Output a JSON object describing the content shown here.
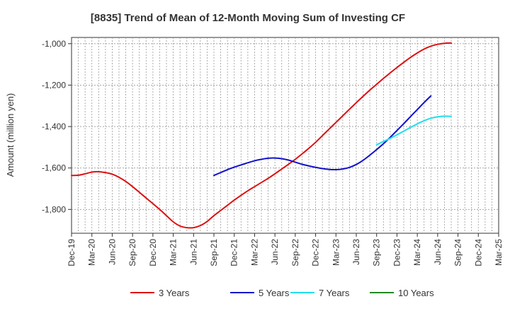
{
  "chart_data": {
    "type": "line",
    "title": "[8835]  Trend of Mean of 12-Month Moving Sum of Investing CF",
    "xlabel": "",
    "ylabel": "Amount (million yen)",
    "ylim": [
      -1915,
      -970
    ],
    "yticks": [
      -1000,
      -1200,
      -1400,
      -1600,
      -1800
    ],
    "ytick_labels": [
      "-1,000",
      "-1,200",
      "-1,400",
      "-1,600",
      "-1,800"
    ],
    "x_months": [
      "Dec-19",
      "Jan-20",
      "Feb-20",
      "Mar-20",
      "Apr-20",
      "May-20",
      "Jun-20",
      "Jul-20",
      "Aug-20",
      "Sep-20",
      "Oct-20",
      "Nov-20",
      "Dec-20",
      "Jan-21",
      "Feb-21",
      "Mar-21",
      "Apr-21",
      "May-21",
      "Jun-21",
      "Jul-21",
      "Aug-21",
      "Sep-21",
      "Oct-21",
      "Nov-21",
      "Dec-21",
      "Jan-22",
      "Feb-22",
      "Mar-22",
      "Apr-22",
      "May-22",
      "Jun-22",
      "Jul-22",
      "Aug-22",
      "Sep-22",
      "Oct-22",
      "Nov-22",
      "Dec-22",
      "Jan-23",
      "Feb-23",
      "Mar-23",
      "Apr-23",
      "May-23",
      "Jun-23",
      "Jul-23",
      "Aug-23",
      "Sep-23",
      "Oct-23",
      "Nov-23",
      "Dec-23",
      "Jan-24",
      "Feb-24",
      "Mar-24",
      "Apr-24",
      "May-24",
      "Jun-24",
      "Jul-24",
      "Aug-24",
      "Sep-24",
      "Oct-24",
      "Nov-24",
      "Dec-24",
      "Jan-25",
      "Feb-25",
      "Mar-25"
    ],
    "x_tick_labels": [
      "Dec-19",
      "Mar-20",
      "Jun-20",
      "Sep-20",
      "Dec-20",
      "Mar-21",
      "Jun-21",
      "Sep-21",
      "Dec-21",
      "Mar-22",
      "Jun-22",
      "Sep-22",
      "Dec-22",
      "Mar-23",
      "Jun-23",
      "Sep-23",
      "Dec-23",
      "Mar-24",
      "Jun-24",
      "Sep-24",
      "Dec-24",
      "Mar-25"
    ],
    "series": [
      {
        "name": "3 Years",
        "color": "#dd1111",
        "start": "Dec-19",
        "values": [
          -1636,
          -1635,
          -1628,
          -1620,
          -1618,
          -1622,
          -1630,
          -1645,
          -1665,
          -1690,
          -1717,
          -1745,
          -1772,
          -1800,
          -1830,
          -1860,
          -1880,
          -1888,
          -1888,
          -1878,
          -1858,
          -1830,
          -1805,
          -1780,
          -1755,
          -1732,
          -1710,
          -1690,
          -1670,
          -1650,
          -1628,
          -1605,
          -1582,
          -1558,
          -1532,
          -1505,
          -1476,
          -1444,
          -1412,
          -1380,
          -1348,
          -1316,
          -1285,
          -1254,
          -1224,
          -1196,
          -1168,
          -1141,
          -1115,
          -1090,
          -1066,
          -1045,
          -1026,
          -1012,
          -1003,
          -998,
          -997
        ]
      },
      {
        "name": "5 Years",
        "color": "#1111cc",
        "start": "Sep-21",
        "values": [
          -1636,
          -1622,
          -1608,
          -1596,
          -1585,
          -1575,
          -1565,
          -1558,
          -1553,
          -1552,
          -1555,
          -1562,
          -1572,
          -1582,
          -1590,
          -1597,
          -1603,
          -1607,
          -1608,
          -1605,
          -1597,
          -1583,
          -1563,
          -1538,
          -1511,
          -1483,
          -1452,
          -1419,
          -1386,
          -1352,
          -1318,
          -1284,
          -1252
        ]
      },
      {
        "name": "7 Years",
        "color": "#22ddee",
        "start": "Sep-23",
        "values": [
          -1488,
          -1472,
          -1457,
          -1440,
          -1422,
          -1404,
          -1387,
          -1372,
          -1360,
          -1353,
          -1350,
          -1351
        ]
      },
      {
        "name": "10 Years",
        "color": "#228822",
        "start": "Sep-24",
        "values": []
      }
    ],
    "grid": true,
    "legend_position": "bottom"
  }
}
